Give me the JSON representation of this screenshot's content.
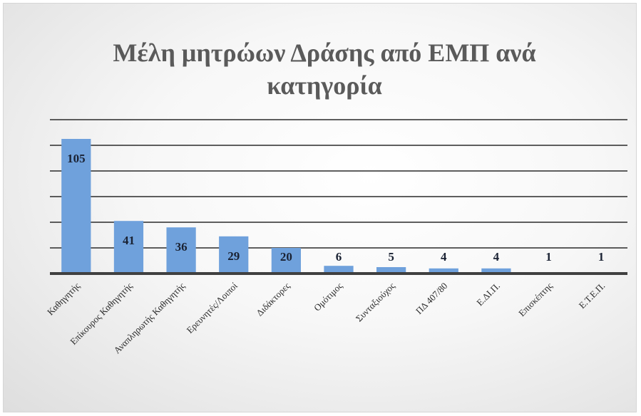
{
  "chart_data": {
    "type": "bar",
    "title": "Μέλη μητρώων Δράσης από ΕΜΠ ανά κατηγορία",
    "categories": [
      "Καθηγητής",
      "Επίκουρος Καθηγητής",
      "Αναπληρωτής Καθηγητής",
      "Ερευνητές/Λοιποί",
      "Διδάκτορες",
      "Ομότιμος",
      "Συνταξιούχος",
      "ΠΔ 407/80",
      "Ε.ΔΙ.Π.",
      "Επισκέπτης",
      "Ε.Τ.Ε.Π."
    ],
    "values": [
      105,
      41,
      36,
      29,
      20,
      6,
      5,
      4,
      4,
      1,
      1
    ],
    "data_labels": [
      "105",
      "41",
      "36",
      "29",
      "20",
      "6",
      "5",
      "4",
      "4",
      "1",
      "1"
    ],
    "xlabel": "",
    "ylabel": "",
    "ylim": [
      0,
      120
    ],
    "grid": true,
    "bar_color": "#6fa1dc",
    "legend": "none"
  }
}
